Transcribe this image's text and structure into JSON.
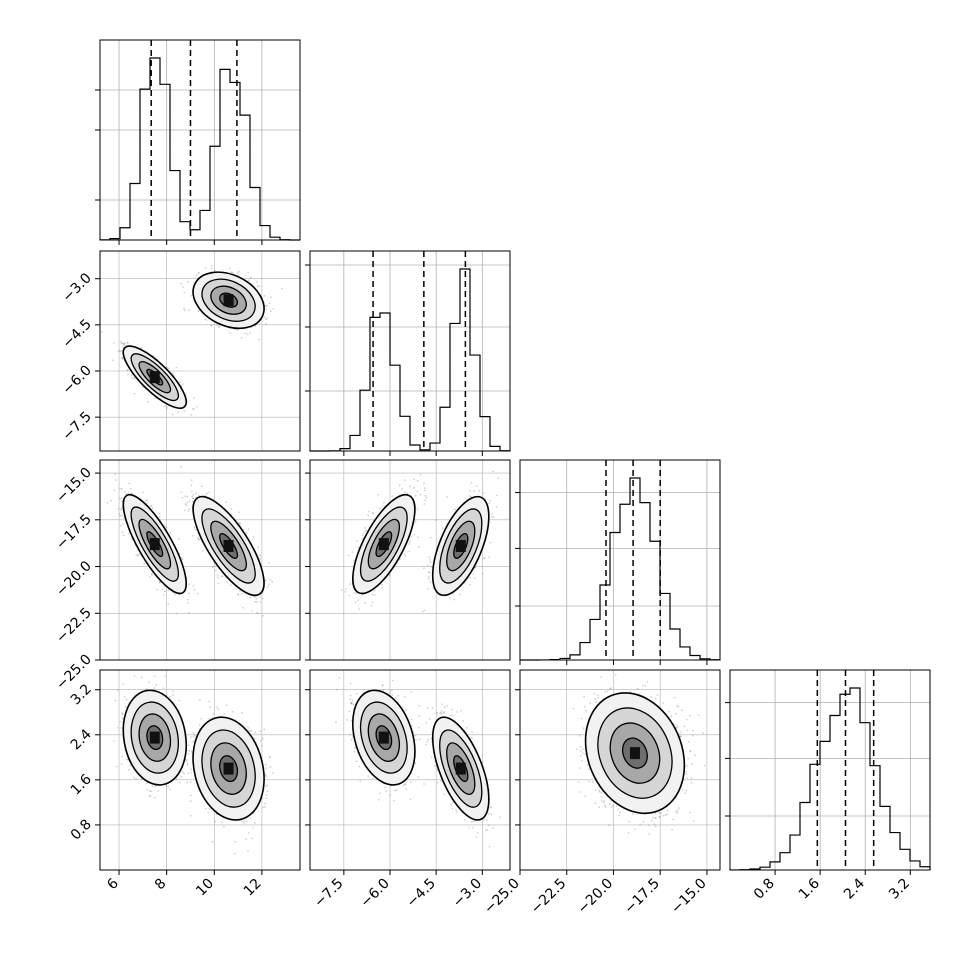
{
  "chart_data": {
    "type": "corner",
    "title": "",
    "grid": true,
    "parameters": [
      {
        "name": "",
        "range": [
          5.2,
          13.6
        ],
        "ticks": [
          "6",
          "8",
          "10",
          "12"
        ],
        "modes": [
          {
            "mean": 7.55,
            "sd": 0.55,
            "w": 0.5
          },
          {
            "mean": 10.75,
            "sd": 0.62,
            "w": 0.5
          }
        ],
        "quantiles": [
          7.35,
          9.0,
          10.95
        ]
      },
      {
        "name": "",
        "range": [
          -8.6,
          -2.1
        ],
        "ticks": [
          "−7.5",
          "−6.0",
          "−4.5",
          "−3.0"
        ],
        "modes": [
          {
            "mean": -6.25,
            "sd": 0.42,
            "w": 0.5
          },
          {
            "mean": -3.6,
            "sd": 0.38,
            "w": 0.5
          }
        ],
        "quantiles": [
          -6.55,
          -4.9,
          -3.55
        ]
      },
      {
        "name": "",
        "range": [
          -25.0,
          -14.3
        ],
        "ticks": [
          "−25.0",
          "−22.5",
          "−20.0",
          "−17.5",
          "−15.0"
        ],
        "modes": [
          {
            "mean": -18.9,
            "sd": 1.2,
            "w": 1.0
          }
        ],
        "quantiles": [
          -20.4,
          -18.95,
          -17.5
        ]
      },
      {
        "name": "",
        "range": [
          0.0,
          3.55
        ],
        "ticks": [
          "0.8",
          "1.6",
          "2.4",
          "3.2"
        ],
        "modes": [
          {
            "mean": 2.05,
            "sd": 0.5,
            "w": 1.0
          }
        ],
        "quantiles": [
          1.55,
          2.05,
          2.55
        ]
      }
    ],
    "tick_values": [
      [
        6,
        8,
        10,
        12
      ],
      [
        -7.5,
        -6.0,
        -4.5,
        -3.0
      ],
      [
        -25.0,
        -22.5,
        -20.0,
        -17.5,
        -15.0
      ],
      [
        0.8,
        1.6,
        2.4,
        3.2
      ]
    ],
    "clusters": [
      {
        "center": [
          7.5,
          -6.2,
          -18.8,
          2.35
        ],
        "spread": [
          0.55,
          0.42,
          1.1,
          0.35
        ]
      },
      {
        "center": [
          10.6,
          -3.7,
          -18.9,
          1.8
        ],
        "spread": [
          0.62,
          0.38,
          1.1,
          0.38
        ]
      }
    ],
    "pair_correlations": {
      "1-0": [
        -0.8,
        -0.3
      ],
      "2-0": [
        -0.8,
        -0.75
      ],
      "2-1": [
        0.7,
        0.6
      ],
      "3-0": [
        -0.15,
        -0.2
      ],
      "3-1": [
        -0.3,
        -0.6
      ],
      "3-2": [
        -0.2,
        -0.2
      ]
    },
    "colors": {
      "contour": "#000000",
      "scatter": "#7f7f7f",
      "grid": "#b0b0b0",
      "quantile_line": "#000000"
    }
  }
}
